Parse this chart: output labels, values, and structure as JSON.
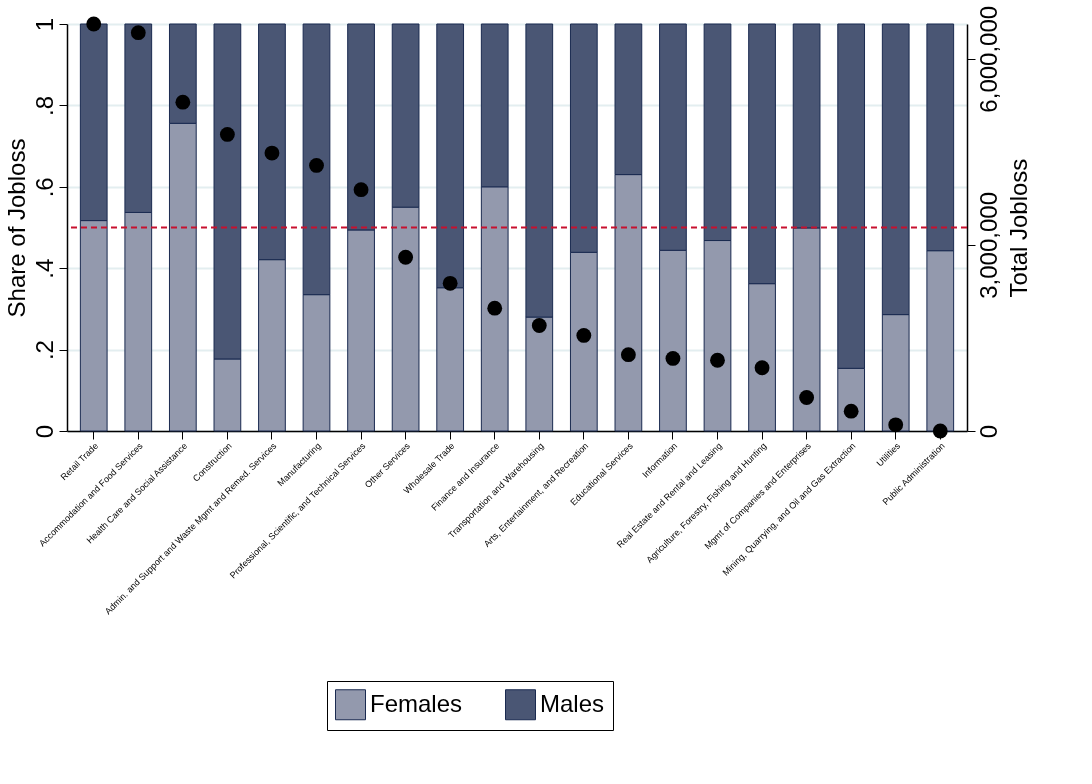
{
  "chart_data": {
    "type": "bar",
    "stacked": true,
    "ylabel": "Share of Jobloss",
    "y2label": "Total Jobloss",
    "categories": [
      "Retail Trade",
      "Accommodation and Food Services",
      "Health Care and Social Assistance",
      "Construction",
      "Admin. and Support and Waste Mgmt and Remed. Services",
      "Manufacturing",
      "Professional, Scientific, and Technical Services",
      "Other Services",
      "Wholesale Trade",
      "Finance and Insurance",
      "Transportation and Warehousing",
      "Arts, Entertainment, and Recreation",
      "Educational Services",
      "Information",
      "Real Estate and Rental and Leasing",
      "Agriculture, Forestry, Fishing and Hunting",
      "Mgmt of Companies and Enterprises",
      "Mining, Quarrying, and Oil and Gas Extraction",
      "Utilities",
      "Public Administration"
    ],
    "series": [
      {
        "name": "Females",
        "color": "#9399ad",
        "values": [
          0.517,
          0.537,
          0.756,
          0.177,
          0.421,
          0.335,
          0.494,
          0.55,
          0.352,
          0.6,
          0.28,
          0.439,
          0.63,
          0.444,
          0.468,
          0.362,
          0.499,
          0.154,
          0.286,
          0.443
        ]
      },
      {
        "name": "Males",
        "color": "#4a5674",
        "values": [
          0.483,
          0.463,
          0.244,
          0.823,
          0.579,
          0.665,
          0.506,
          0.45,
          0.648,
          0.4,
          0.72,
          0.561,
          0.37,
          0.556,
          0.532,
          0.638,
          0.501,
          0.846,
          0.714,
          0.557
        ]
      },
      {
        "type": "scatter",
        "axis": "y2",
        "color": "#000000",
        "x": [
          "Retail Trade",
          "Accommodation and Food Services",
          "Health Care and Social Assistance",
          "Construction",
          "Admin. and Support and Waste Mgmt and Remed. Services",
          "Manufacturing",
          "Professional, Scientific, and Technical Services",
          "Other Services",
          "Wholesale Trade",
          "Finance and Insurance",
          "Transportation and Warehousing",
          "Arts, Entertainment, and Recreation",
          "Educational Services",
          "Information",
          "Real Estate and Rental and Leasing",
          "Agriculture, Forestry, Fishing and Hunting",
          "Mgmt of Companies and Enterprises",
          "Mining, Quarrying, and Oil and Gas Extraction",
          "Utilities",
          "Public Administration"
        ],
        "values": [
          6560000,
          6420000,
          5300000,
          4780000,
          4480000,
          4280000,
          3890000,
          2800000,
          2380000,
          1980000,
          1700000,
          1540000,
          1230000,
          1170000,
          1140000,
          1020000,
          540000,
          320000,
          100000,
          0
        ]
      }
    ],
    "ylim": [
      0,
      1
    ],
    "yticks": [
      {
        "value": 0,
        "label": "0"
      },
      {
        "value": 0.2,
        "label": ".2"
      },
      {
        "value": 0.4,
        "label": ".4"
      },
      {
        "value": 0.6,
        "label": ".6"
      },
      {
        "value": 0.8,
        "label": ".8"
      },
      {
        "value": 1,
        "label": "1"
      }
    ],
    "y2lim": [
      0,
      6560000
    ],
    "y2ticks": [
      {
        "value": 0,
        "label": "0"
      },
      {
        "value": 3000000,
        "label": "3,000,000"
      },
      {
        "value": 6000000,
        "label": "6,000,000"
      }
    ],
    "ref_lines": [
      {
        "axis": "y",
        "value": 0.5,
        "color": "#c8102e",
        "line_style": "dashed"
      }
    ],
    "grid": "y",
    "legend": "bottom",
    "marker": "circle"
  }
}
